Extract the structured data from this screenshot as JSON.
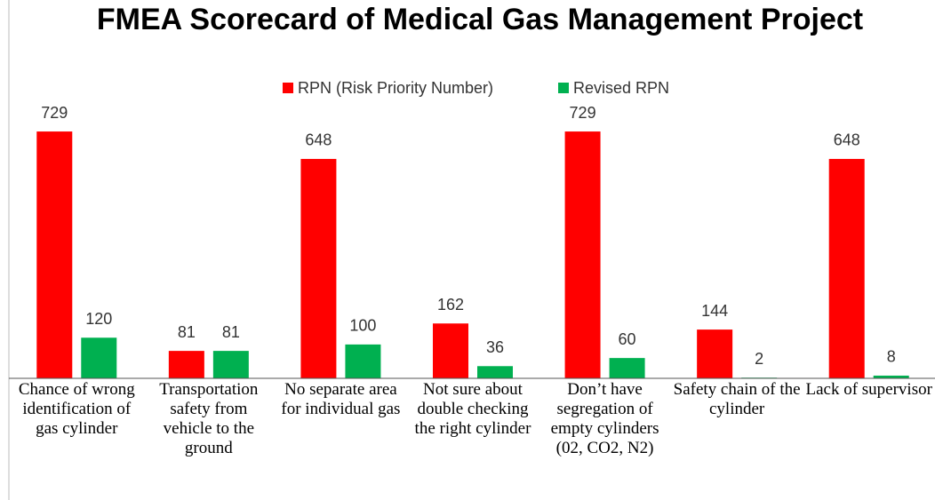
{
  "chart_data": {
    "type": "bar",
    "title": "FMEA Scorecard of Medical Gas Management Project",
    "categories": [
      "Chance of wrong identification of gas cylinder",
      "Transportation safety from vehicle to the ground",
      "No separate area for individual gas",
      "Not sure about double checking the right cylinder",
      "Don’t have segregation of empty cylinders (02, CO2, N2)",
      "Safety chain of the cylinder",
      "Lack of supervisor"
    ],
    "series": [
      {
        "name": "RPN (Risk Priority Number)",
        "color": "#ff0000",
        "values": [
          729,
          81,
          648,
          162,
          729,
          144,
          648
        ]
      },
      {
        "name": "Revised RPN",
        "color": "#00b050",
        "values": [
          120,
          81,
          100,
          36,
          60,
          2,
          8
        ]
      }
    ],
    "ylim": [
      0,
      800
    ],
    "legend": "top"
  }
}
